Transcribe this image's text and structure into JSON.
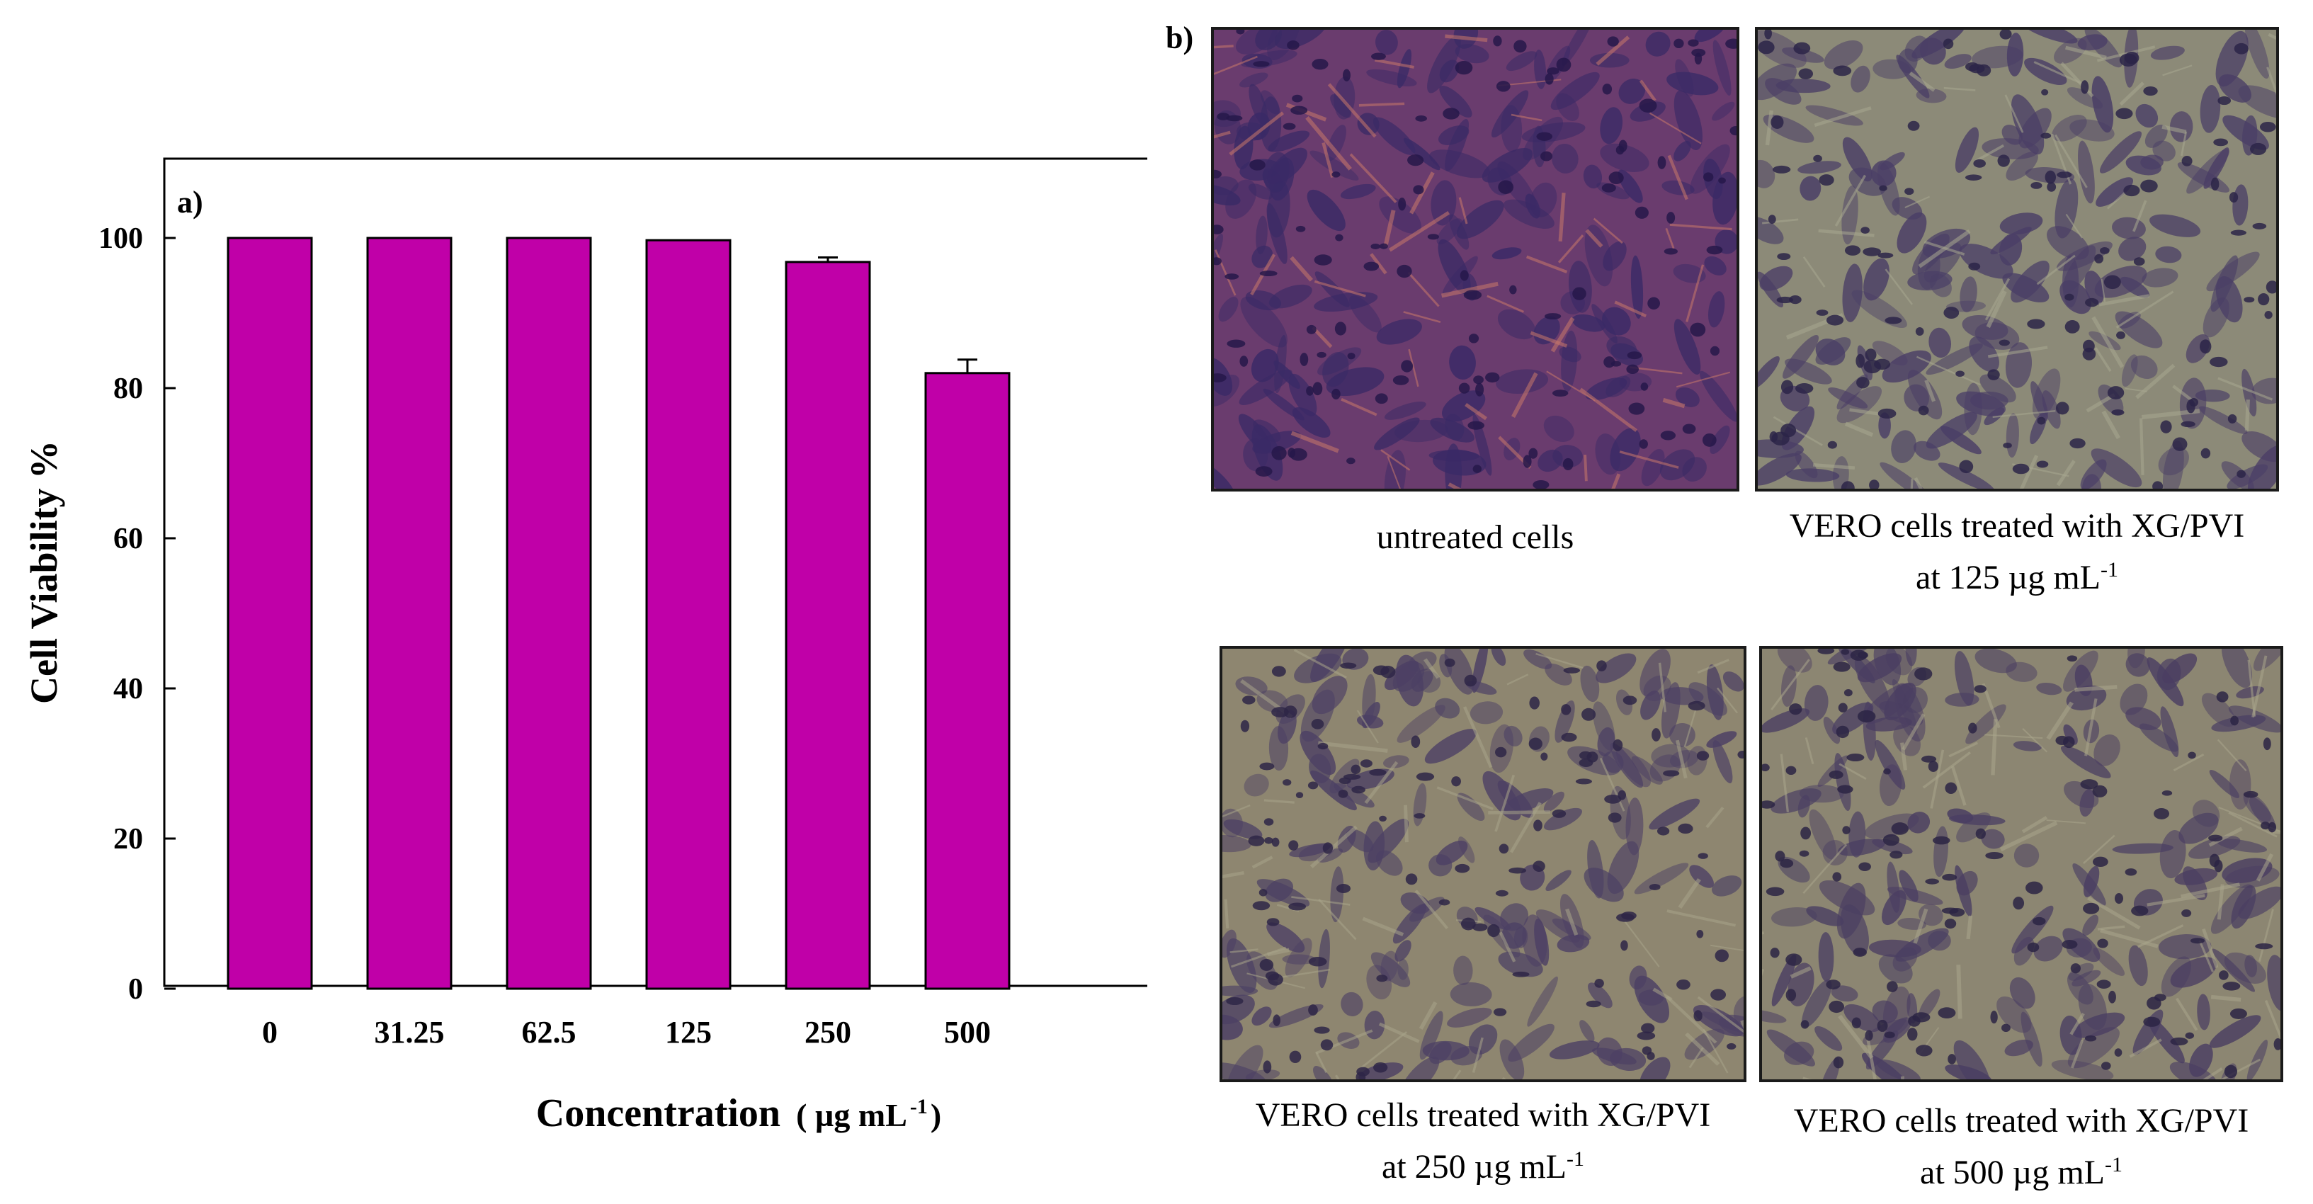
{
  "chart_data": {
    "type": "bar",
    "panel_label": "a)",
    "categories": [
      "0",
      "31.25",
      "62.5",
      "125",
      "250",
      "500"
    ],
    "values": [
      100,
      100,
      100,
      99.7,
      96.8,
      82
    ],
    "errors": [
      0,
      0,
      0,
      0,
      0.6,
      1.8
    ],
    "ylabel": "Cell Viability %",
    "xlabel_main": "Concentration",
    "xlabel_unit_open": "( µg mL",
    "xlabel_unit_sup": "-1",
    "xlabel_unit_close": " )",
    "ylim": [
      0,
      110
    ],
    "yticks": [
      "0",
      "20",
      "40",
      "60",
      "80",
      "100"
    ],
    "grid": false,
    "bar_color": "#c000a8"
  },
  "images_panel": {
    "label": "b)",
    "images": [
      {
        "caption_line1": "untreated cells",
        "caption_line2": "",
        "caption_sup": "",
        "tint": "#8a4a7a"
      },
      {
        "caption_line1": "VERO cells treated with XG/PVI",
        "caption_line2": "at 125 µg mL",
        "caption_sup": "-1",
        "tint": "#8c8a78"
      },
      {
        "caption_line1": "VERO cells treated with XG/PVI",
        "caption_line2": "at 250 µg mL",
        "caption_sup": "-1",
        "tint": "#8e8670"
      },
      {
        "caption_line1": "VERO cells treated with XG/PVI",
        "caption_line2": "at 500 µg mL",
        "caption_sup": "-1",
        "tint": "#8c8672"
      }
    ]
  }
}
